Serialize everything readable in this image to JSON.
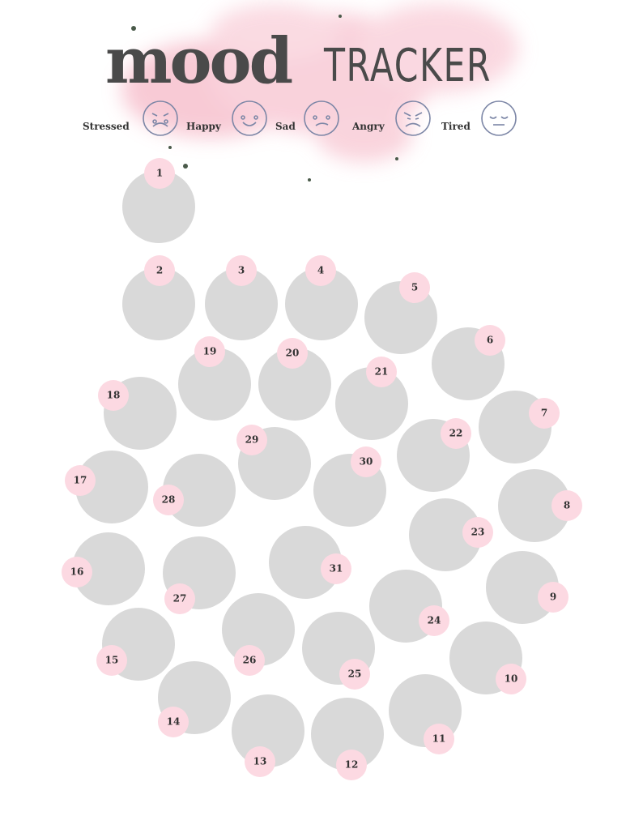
{
  "header": {
    "title_bold": "mood",
    "title_light": "TRACKER"
  },
  "moods": [
    "Stressed",
    "Happy",
    "Sad",
    "Angry",
    "Tired"
  ],
  "days": [
    1,
    2,
    3,
    4,
    5,
    6,
    7,
    8,
    9,
    10,
    11,
    12,
    13,
    14,
    15,
    16,
    17,
    18,
    19,
    20,
    21,
    22,
    23,
    24,
    25,
    26,
    27,
    28,
    29,
    30,
    31
  ]
}
